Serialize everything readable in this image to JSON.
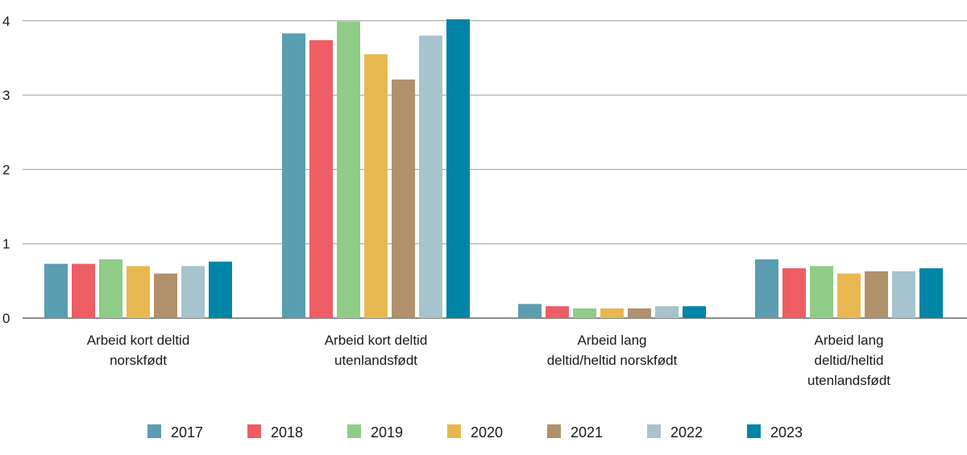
{
  "chart_data": {
    "type": "bar",
    "categories": [
      [
        "Arbeid kort deltid",
        "norskfødt"
      ],
      [
        "Arbeid kort deltid",
        "utenlandsfødt"
      ],
      [
        "Arbeid lang",
        "deltid/heltid norskfødt"
      ],
      [
        "Arbeid lang",
        "deltid/heltid",
        "utenlandsfødt"
      ]
    ],
    "series": [
      {
        "name": "2017",
        "color": "#5b9db1",
        "values": [
          0.73,
          3.83,
          0.19,
          0.79
        ]
      },
      {
        "name": "2018",
        "color": "#ee5d64",
        "values": [
          0.73,
          3.74,
          0.16,
          0.67
        ]
      },
      {
        "name": "2019",
        "color": "#8fcc87",
        "values": [
          0.79,
          3.99,
          0.13,
          0.7
        ]
      },
      {
        "name": "2020",
        "color": "#e8b850",
        "values": [
          0.7,
          3.55,
          0.13,
          0.6
        ]
      },
      {
        "name": "2021",
        "color": "#b0916c",
        "values": [
          0.6,
          3.21,
          0.13,
          0.63
        ]
      },
      {
        "name": "2022",
        "color": "#a7c3cd",
        "values": [
          0.7,
          3.8,
          0.16,
          0.63
        ]
      },
      {
        "name": "2023",
        "color": "#0084a8",
        "values": [
          0.76,
          4.02,
          0.16,
          0.67
        ]
      }
    ],
    "yticks": [
      "0",
      "1",
      "2",
      "3",
      "4"
    ],
    "ylim": [
      0,
      4.1
    ],
    "grid": true,
    "legend": "bottom"
  }
}
